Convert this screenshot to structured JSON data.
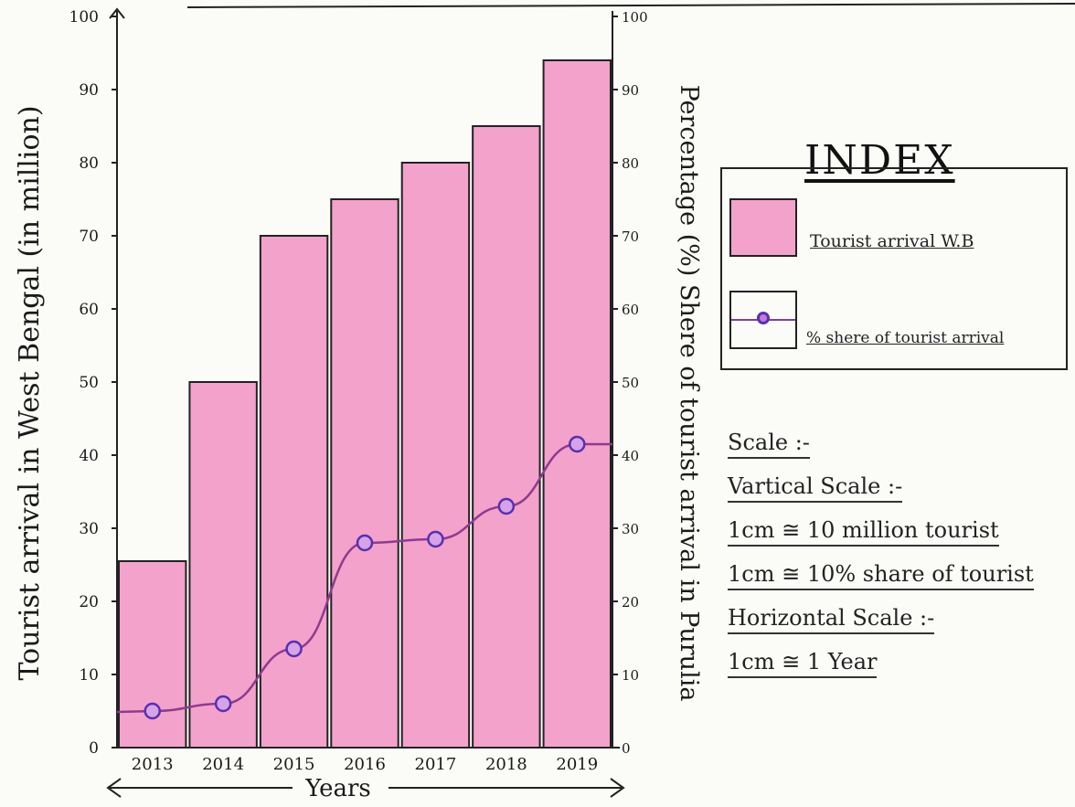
{
  "chart_data": {
    "type": "bar",
    "categories": [
      "2013",
      "2014",
      "2015",
      "2016",
      "2017",
      "2018",
      "2019"
    ],
    "series": [
      {
        "name": "Tourist arrival W.B",
        "kind": "bar",
        "axis": "left",
        "values": [
          25.5,
          50,
          70,
          75,
          80,
          85,
          94
        ],
        "color": "#f3a2cc"
      },
      {
        "name": "% shere of tourist arrival",
        "kind": "line",
        "axis": "right",
        "values": [
          5,
          6,
          13.5,
          28,
          28.5,
          33,
          41.5
        ],
        "color": "#8e3b8e"
      }
    ],
    "ylabel": "Tourist arrival in West Bengal (in million)",
    "y2label": "Percentage (%) Shere of tourist arrival in Purulia",
    "xlabel": "Years",
    "ylim": [
      0,
      100
    ],
    "y2lim": [
      0,
      100
    ],
    "left_ticks": [
      "0",
      "10",
      "20",
      "30",
      "40",
      "50",
      "60",
      "70",
      "80",
      "90",
      "100"
    ],
    "right_ticks": [
      "0",
      "10",
      "20",
      "30",
      "40",
      "50",
      "60",
      "70",
      "80",
      "90",
      "100"
    ],
    "legend": {
      "title": "INDEX",
      "items": [
        "Tourist arrival W.B",
        "% shere of tourist arrival"
      ]
    }
  },
  "scale": {
    "title": "Scale :-",
    "vertical_title": "Vartical Scale :-",
    "line1": "1cm ≅ 10 million tourist",
    "line2": "1cm ≅ 10% share of tourist",
    "horizontal_title": "Horizontal Scale :-",
    "line3": "1cm ≅ 1 Year"
  },
  "colors": {
    "bar": "#f3a2cc",
    "line": "#8e3b8e",
    "marker": "#5a2fb0"
  }
}
